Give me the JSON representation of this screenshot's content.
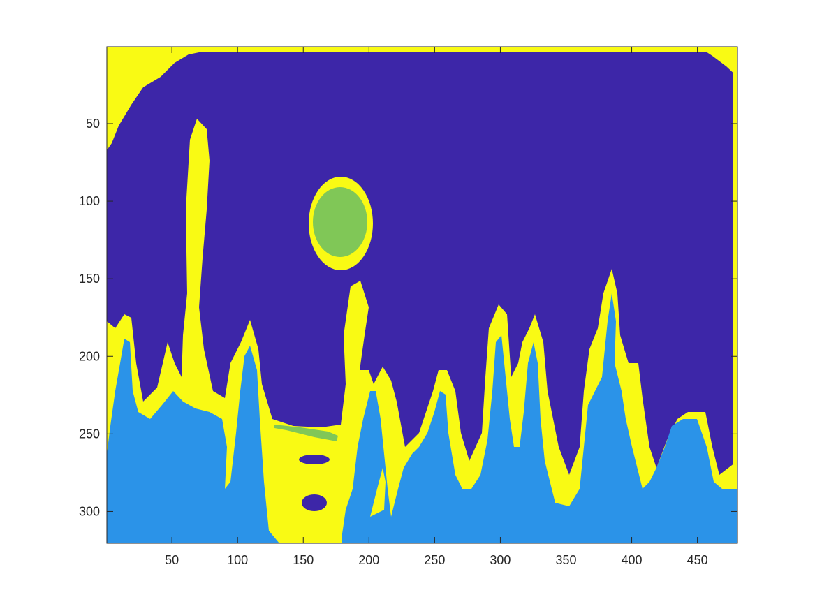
{
  "chart_data": {
    "type": "heatmap",
    "title": "",
    "xlabel": "",
    "ylabel": "",
    "xlim": [
      0.5,
      480.5
    ],
    "ylim": [
      0.5,
      320.5
    ],
    "y_direction": "reverse",
    "x_ticks": [
      50,
      100,
      150,
      200,
      250,
      300,
      350,
      400,
      450
    ],
    "x_tick_labels": [
      "50",
      "100",
      "150",
      "200",
      "250",
      "300",
      "350",
      "400",
      "450"
    ],
    "y_ticks": [
      50,
      100,
      150,
      200,
      250,
      300
    ],
    "y_tick_labels": [
      "50",
      "100",
      "150",
      "200",
      "250",
      "300"
    ],
    "grid": false,
    "legend": "none",
    "colorbar": false,
    "colormap": "parula",
    "cluster_colors": [
      "#3d26a8",
      "#2b93e8",
      "#80c757",
      "#f9fa14"
    ],
    "image_size": [
      320,
      480
    ]
  }
}
